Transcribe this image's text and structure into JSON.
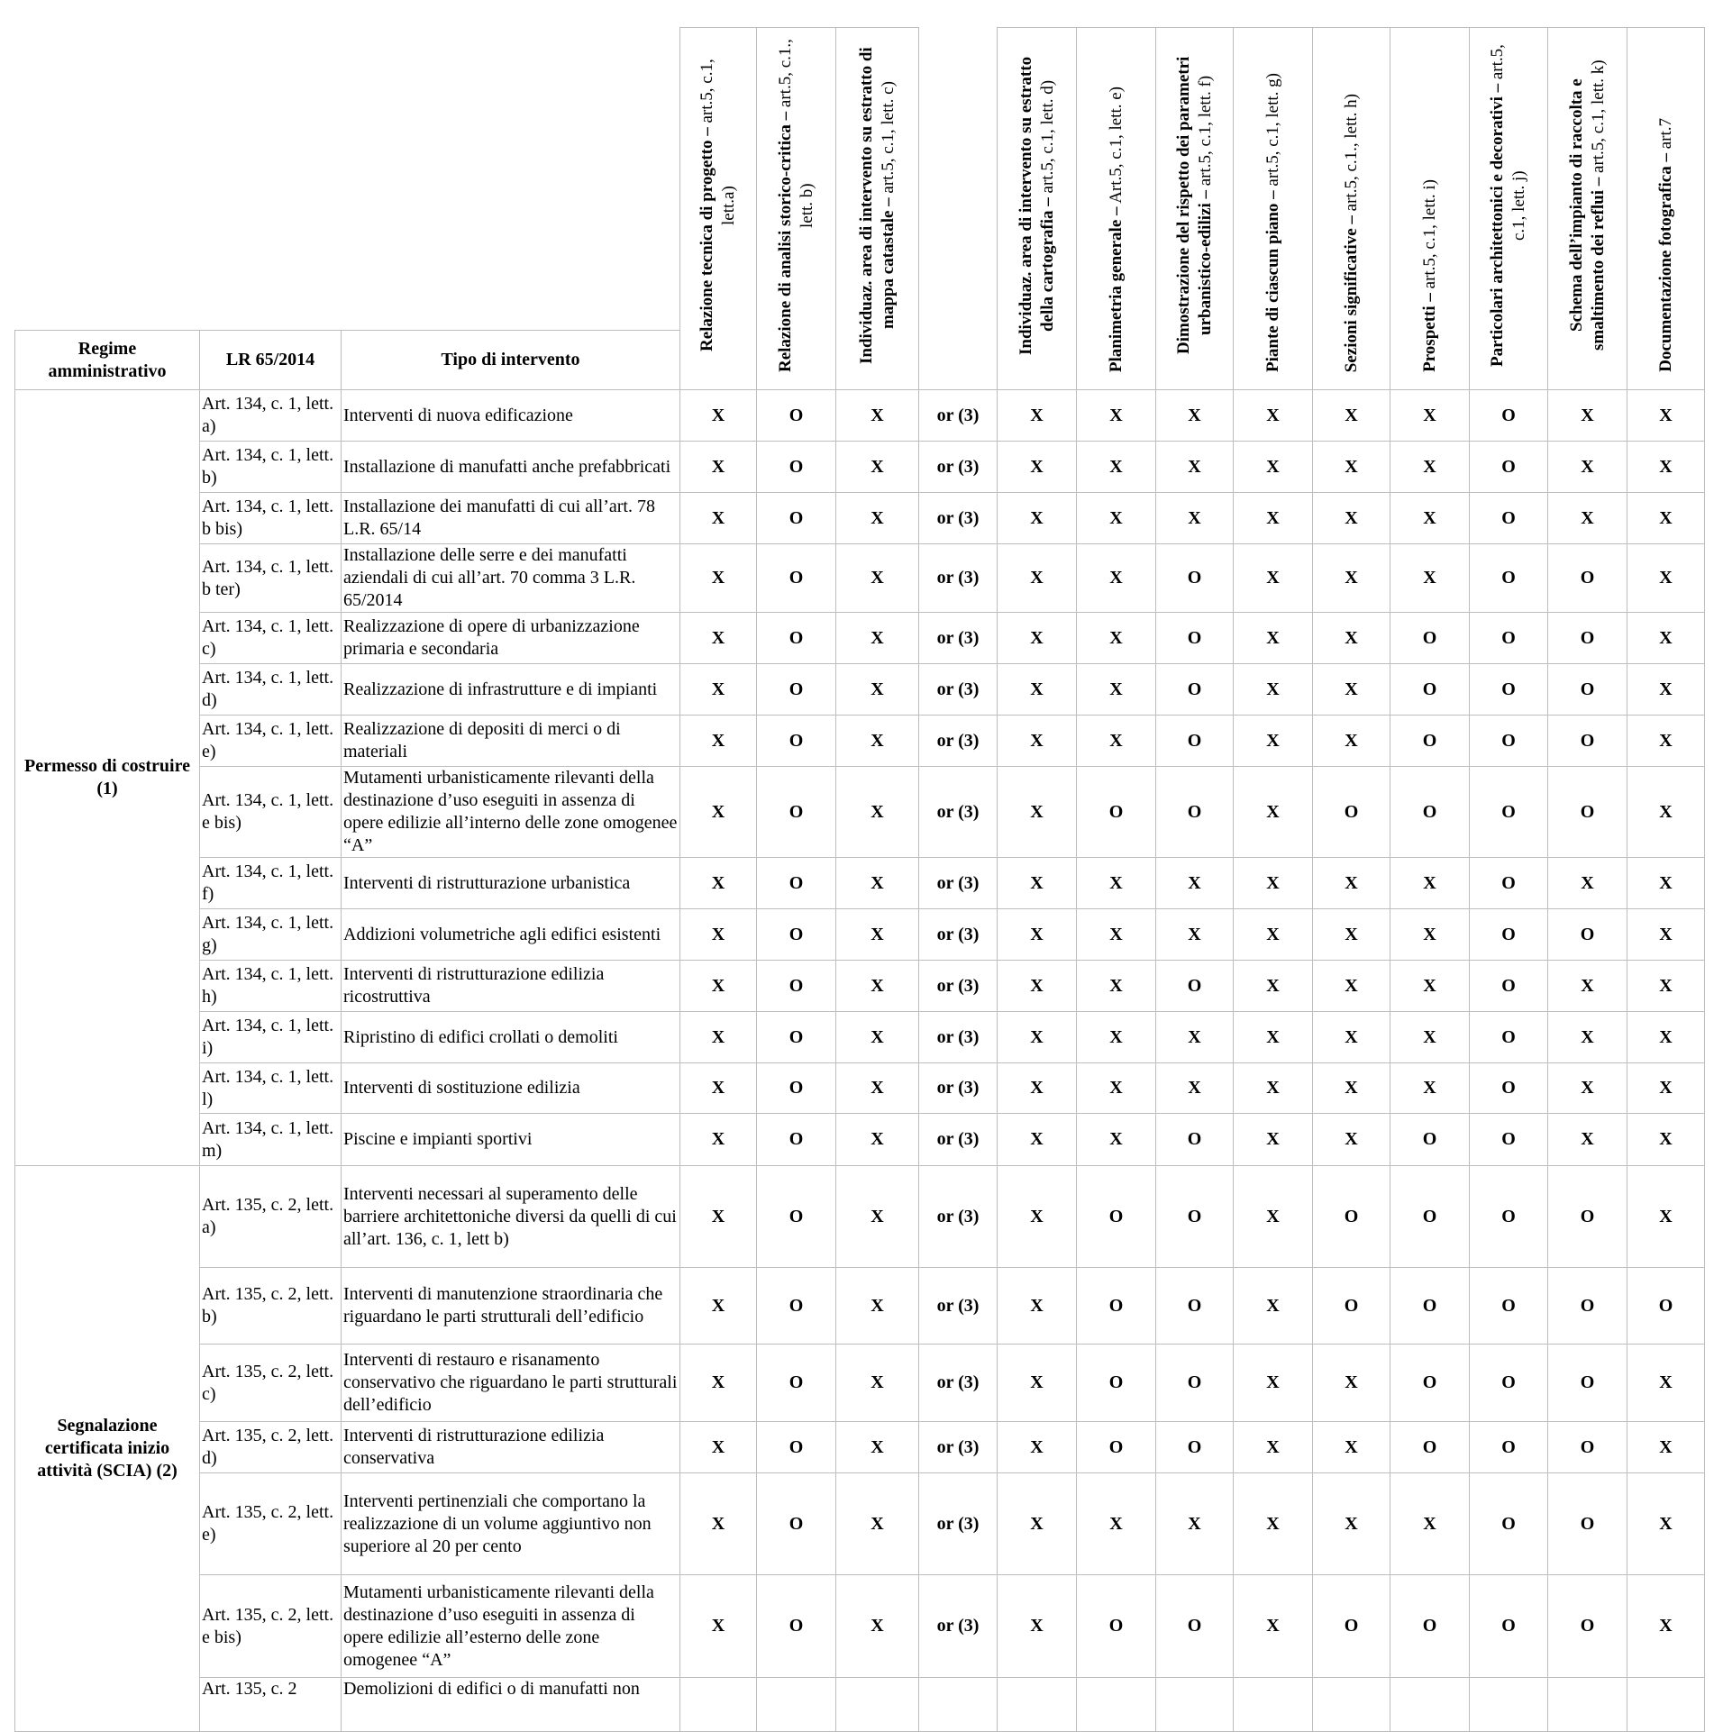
{
  "header": {
    "regime": "Regime amministrativo",
    "lr": "LR 65/2014",
    "tipo": "Tipo di intervento",
    "columns": [
      {
        "bold": "Relazione tecnica di progetto –",
        "normal": " art.5, c.1, lett.a)"
      },
      {
        "bold": "Relazione di analisi storico-critica –",
        "normal": " art.5, c.1., lett. b)"
      },
      {
        "bold": "Individuaz. area di intervento su estratto di mappa catastale –",
        "normal": " art.5, c.1, lett. c)"
      },
      {
        "bold": "",
        "normal": ""
      },
      {
        "bold": "Individuaz. area di intervento su estratto della cartografia –",
        "normal": " art.5, c.1, lett. d)"
      },
      {
        "bold": "Planimetria generale –",
        "normal": " Art.5, c.1, lett. e)"
      },
      {
        "bold": "Dimostrazione del rispetto dei parametri urbanistico-edilizi –",
        "normal": " art.5, c.1, lett. f)"
      },
      {
        "bold": "Piante di ciascun piano –",
        "normal": " art.5, c.1, lett. g)"
      },
      {
        "bold": "Sezioni significative –",
        "normal": " art.5, c.1., lett. h)"
      },
      {
        "bold": "Prospetti –",
        "normal": " art.5, c.1, lett. i)"
      },
      {
        "bold": "Particolari architettonici e decorativi –",
        "normal": " art.5, c.1, lett. j)"
      },
      {
        "bold": "Schema dell’impianto di raccolta e smaltimento dei reflui –",
        "normal": " art.5, c.1, lett. k)"
      },
      {
        "bold": "Documentazione fotografica –",
        "normal": " art.7"
      }
    ]
  },
  "groups": [
    {
      "regime": "Permesso di costruire (1)",
      "rows": [
        {
          "art": "Art. 134, c. 1, lett. a)",
          "tipo": "Interventi di nuova edificazione",
          "v": [
            "X",
            "O",
            "X",
            "or (3)",
            "X",
            "X",
            "X",
            "X",
            "X",
            "X",
            "O",
            "X",
            "X"
          ]
        },
        {
          "art": "Art. 134, c. 1, lett. b)",
          "tipo": "Installazione di manufatti anche prefabbricati",
          "v": [
            "X",
            "O",
            "X",
            "or (3)",
            "X",
            "X",
            "X",
            "X",
            "X",
            "X",
            "O",
            "X",
            "X"
          ]
        },
        {
          "art": "Art. 134, c. 1, lett. b bis)",
          "tipo": "Installazione dei manufatti di cui all’art. 78 L.R. 65/14",
          "v": [
            "X",
            "O",
            "X",
            "or (3)",
            "X",
            "X",
            "X",
            "X",
            "X",
            "X",
            "O",
            "X",
            "X"
          ]
        },
        {
          "art": "Art. 134, c. 1, lett. b ter)",
          "tipo": "Installazione delle serre e dei manufatti aziendali di cui all’art. 70 comma 3 L.R. 65/2014",
          "v": [
            "X",
            "O",
            "X",
            "or (3)",
            "X",
            "X",
            "O",
            "X",
            "X",
            "X",
            "O",
            "O",
            "X"
          ]
        },
        {
          "art": "Art. 134, c. 1, lett. c)",
          "tipo": "Realizzazione di opere di urbanizzazione primaria e secondaria",
          "v": [
            "X",
            "O",
            "X",
            "or (3)",
            "X",
            "X",
            "O",
            "X",
            "X",
            "O",
            "O",
            "O",
            "X"
          ]
        },
        {
          "art": "Art. 134, c. 1, lett. d)",
          "tipo": "Realizzazione di infrastrutture e di impianti",
          "v": [
            "X",
            "O",
            "X",
            "or (3)",
            "X",
            "X",
            "O",
            "X",
            "X",
            "O",
            "O",
            "O",
            "X"
          ]
        },
        {
          "art": "Art. 134, c. 1, lett. e)",
          "tipo": "Realizzazione di depositi di merci o di materiali",
          "v": [
            "X",
            "O",
            "X",
            "or (3)",
            "X",
            "X",
            "O",
            "X",
            "X",
            "O",
            "O",
            "O",
            "X"
          ]
        },
        {
          "art": "Art. 134, c. 1, lett. e bis)",
          "tipo": "Mutamenti urbanisticamente rilevanti della destinazione d’uso eseguiti in assenza di opere edilizie all’interno delle zone omogenee “A”",
          "v": [
            "X",
            "O",
            "X",
            "or (3)",
            "X",
            "O",
            "O",
            "X",
            "O",
            "O",
            "O",
            "O",
            "X"
          ]
        },
        {
          "art": "Art. 134, c. 1, lett. f)",
          "tipo": "Interventi di ristrutturazione urbanistica",
          "v": [
            "X",
            "O",
            "X",
            "or (3)",
            "X",
            "X",
            "X",
            "X",
            "X",
            "X",
            "O",
            "X",
            "X"
          ]
        },
        {
          "art": "Art. 134, c. 1, lett. g)",
          "tipo": "Addizioni volumetriche agli edifici esistenti",
          "v": [
            "X",
            "O",
            "X",
            "or (3)",
            "X",
            "X",
            "X",
            "X",
            "X",
            "X",
            "O",
            "O",
            "X"
          ]
        },
        {
          "art": "Art. 134, c. 1, lett. h)",
          "tipo": "Interventi di ristrutturazione edilizia ricostruttiva",
          "v": [
            "X",
            "O",
            "X",
            "or (3)",
            "X",
            "X",
            "O",
            "X",
            "X",
            "X",
            "O",
            "X",
            "X"
          ]
        },
        {
          "art": "Art. 134, c. 1, lett. i)",
          "tipo": "Ripristino di edifici crollati o demoliti",
          "v": [
            "X",
            "O",
            "X",
            "or (3)",
            "X",
            "X",
            "X",
            "X",
            "X",
            "X",
            "O",
            "X",
            "X"
          ]
        },
        {
          "art": "Art. 134, c. 1, lett. l)",
          "tipo": "Interventi di sostituzione edilizia",
          "v": [
            "X",
            "O",
            "X",
            "or (3)",
            "X",
            "X",
            "X",
            "X",
            "X",
            "X",
            "O",
            "X",
            "X"
          ]
        },
        {
          "art": "Art. 134, c. 1, lett. m)",
          "tipo": "Piscine e impianti sportivi",
          "v": [
            "X",
            "O",
            "X",
            "or (3)",
            "X",
            "X",
            "O",
            "X",
            "X",
            "O",
            "O",
            "X",
            "X"
          ]
        }
      ]
    },
    {
      "regime": "Segnalazione certificata inizio attività (SCIA) (2)",
      "rows": [
        {
          "art": "Art. 135, c. 2, lett. a)",
          "tipo": "Interventi necessari al superamento delle barriere architettoniche diversi da quelli di cui all’art. 136, c. 1, lett b)",
          "v": [
            "X",
            "O",
            "X",
            "or (3)",
            "X",
            "O",
            "O",
            "X",
            "O",
            "O",
            "O",
            "O",
            "X"
          ]
        },
        {
          "art": "Art. 135, c. 2, lett. b)",
          "tipo": "Interventi di manutenzione straordinaria che riguardano le parti strutturali dell’edificio",
          "v": [
            "X",
            "O",
            "X",
            "or (3)",
            "X",
            "O",
            "O",
            "X",
            "O",
            "O",
            "O",
            "O",
            "O"
          ]
        },
        {
          "art": "Art. 135, c. 2, lett. c)",
          "tipo": "Interventi di restauro e risanamento conservativo che riguardano le parti strutturali dell’edificio",
          "v": [
            "X",
            "O",
            "X",
            "or (3)",
            "X",
            "O",
            "O",
            "X",
            "X",
            "O",
            "O",
            "O",
            "X"
          ]
        },
        {
          "art": "Art. 135, c. 2, lett. d)",
          "tipo": "Interventi di ristrutturazione edilizia conservativa",
          "v": [
            "X",
            "O",
            "X",
            "or (3)",
            "X",
            "O",
            "O",
            "X",
            "X",
            "O",
            "O",
            "O",
            "X"
          ]
        },
        {
          "art": "Art. 135, c. 2, lett. e)",
          "tipo": "Interventi pertinenziali che comportano la realizzazione di un volume aggiuntivo non superiore al 20 per cento",
          "v": [
            "X",
            "O",
            "X",
            "or (3)",
            "X",
            "X",
            "X",
            "X",
            "X",
            "X",
            "O",
            "O",
            "X"
          ]
        },
        {
          "art": "Art. 135, c. 2, lett. e bis)",
          "tipo": "Mutamenti urbanisticamente rilevanti della destinazione d’uso eseguiti in assenza di opere edilizie all’esterno delle zone omogenee “A”",
          "v": [
            "X",
            "O",
            "X",
            "or (3)",
            "X",
            "O",
            "O",
            "X",
            "O",
            "O",
            "O",
            "O",
            "X"
          ]
        },
        {
          "art": "Art. 135, c. 2",
          "tipo": "Demolizioni di edifici o di manufatti non",
          "v": [
            "",
            "",
            "",
            "",
            "",
            "",
            "",
            "",
            "",
            "",
            "",
            "",
            ""
          ]
        }
      ]
    }
  ]
}
